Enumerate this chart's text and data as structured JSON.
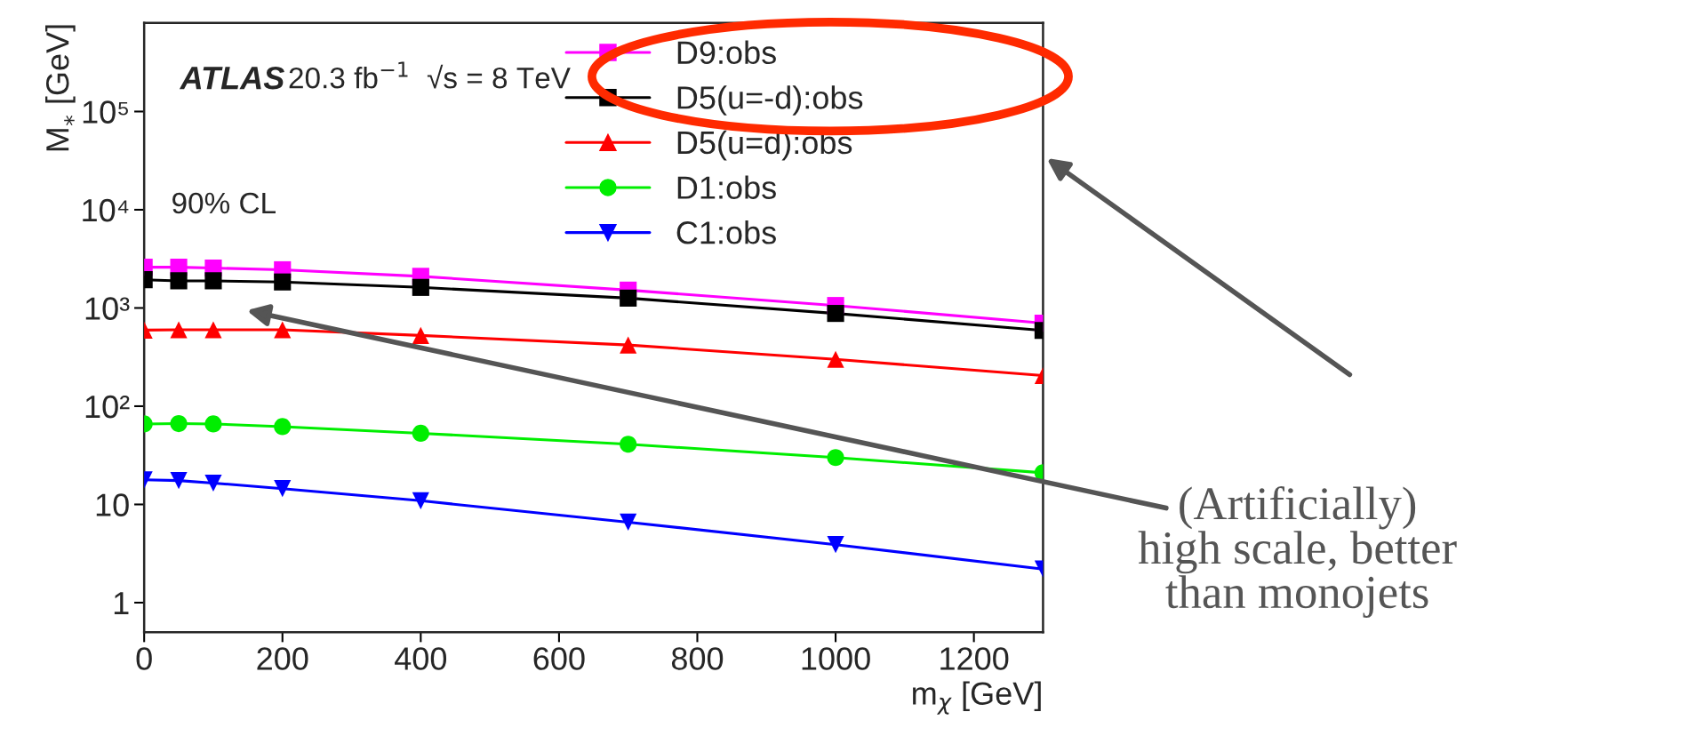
{
  "chart_data": {
    "type": "line",
    "xlabel": "m$_{χ}$ [GeV]",
    "ylabel": "M$_{⁎}$ [GeV]",
    "x": [
      0,
      50,
      100,
      200,
      400,
      700,
      1000,
      1300
    ],
    "series": [
      {
        "name": "D9:obs",
        "color": "#ff00ff",
        "marker": "square",
        "values": [
          2600,
          2600,
          2550,
          2450,
          2100,
          1520,
          1060,
          700
        ]
      },
      {
        "name": "D5(u=-d):obs",
        "color": "#000000",
        "marker": "square",
        "values": [
          1940,
          1890,
          1890,
          1840,
          1620,
          1260,
          880,
          590
        ]
      },
      {
        "name": "D5(u=d):obs",
        "color": "#ff0000",
        "marker": "triangle",
        "values": [
          595,
          600,
          600,
          600,
          525,
          420,
          300,
          205
        ]
      },
      {
        "name": "D1:obs",
        "color": "#00ee00",
        "marker": "circle",
        "values": [
          66,
          66.5,
          66,
          62,
          53,
          41,
          30,
          21
        ]
      },
      {
        "name": "C1:obs",
        "color": "#0000ff",
        "marker": "triangle_down",
        "values": [
          17.8,
          17.5,
          16.5,
          14.5,
          10.9,
          6.6,
          3.9,
          2.2
        ]
      }
    ],
    "log": "y",
    "xlim": [
      0,
      1300
    ],
    "xticks": [
      0,
      200,
      400,
      600,
      800,
      1000,
      1200
    ],
    "ylim": [
      0.5,
      800000
    ],
    "yticks": [
      1,
      10,
      {
        "value": 100,
        "label": "10²"
      },
      {
        "value": 1000,
        "label": "10³"
      },
      {
        "value": 10000,
        "label": "10⁴"
      },
      {
        "value": 100000,
        "label": "10⁵"
      }
    ],
    "grid": false,
    "legend": "top right",
    "line_style": "solid",
    "annotations": [
      "ATLAS",
      "20.3 fb$^{−1}$  √s = 8 TeV",
      "90% CL",
      "(Artificially)\nhigh scale, better\nthan monojets"
    ]
  }
}
